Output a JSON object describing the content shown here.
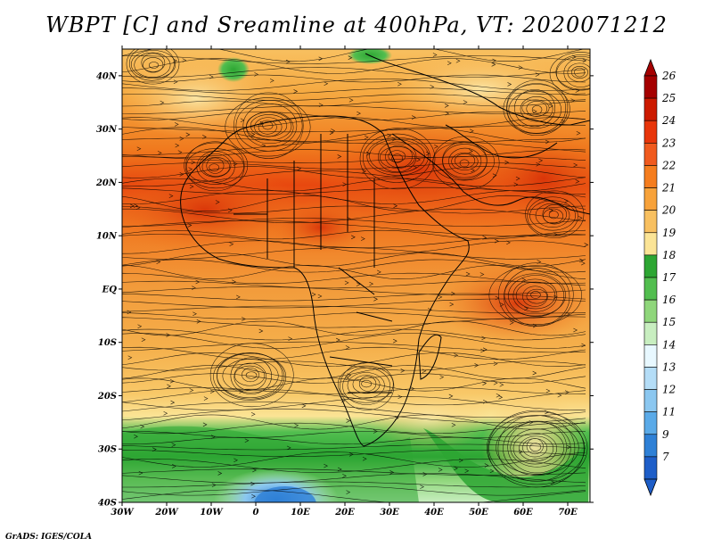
{
  "title": "WBPT [C] and Sreamline at 400hPa, VT: 2020071212",
  "footer": "GrADS: IGES/COLA",
  "map": {
    "lat_labels": [
      "40N",
      "30N",
      "20N",
      "10N",
      "EQ",
      "10S",
      "20S",
      "30S",
      "40S"
    ],
    "lon_labels": [
      "30W",
      "20W",
      "10W",
      "0",
      "10E",
      "20E",
      "30E",
      "40E",
      "50E",
      "60E",
      "70E"
    ],
    "domain": {
      "lon_range": [
        -30,
        75
      ],
      "lat_range": [
        -40,
        45
      ]
    }
  },
  "colorbar": {
    "levels": [
      "26",
      "25",
      "24",
      "23",
      "22",
      "21",
      "20",
      "19",
      "18",
      "17",
      "16",
      "15",
      "14",
      "13",
      "12",
      "11",
      "9",
      "7"
    ],
    "colors": [
      "#a50000",
      "#cc1a00",
      "#e8350a",
      "#f05a1e",
      "#f57d1e",
      "#f7a23a",
      "#f8c060",
      "#fbe496",
      "#2da633",
      "#52be4f",
      "#8fd67b",
      "#c8eec0",
      "#e8f8ff",
      "#b4ddf7",
      "#8bc7f0",
      "#5aaae8",
      "#2e80d6",
      "#1e5ec8"
    ]
  }
}
